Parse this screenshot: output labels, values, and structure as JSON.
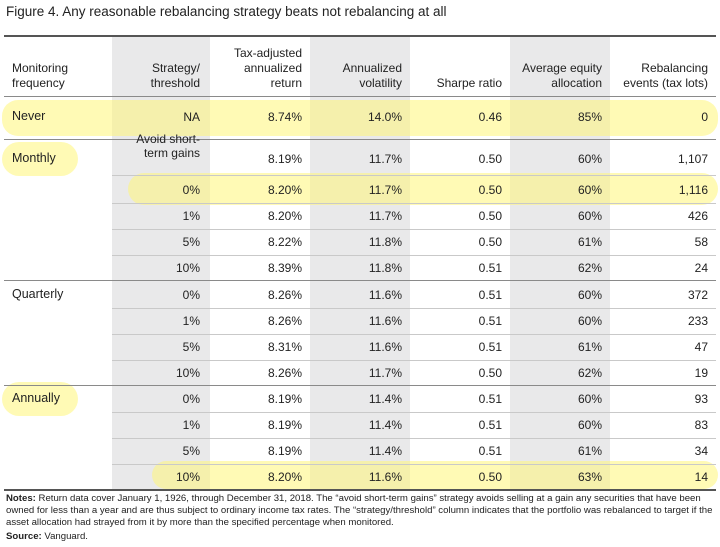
{
  "title": "Figure 4. Any reasonable rebalancing strategy beats not rebalancing at all",
  "headers": {
    "monitoring": "Monitoring\nfrequency",
    "strategy": "Strategy/\nthreshold",
    "return": "Tax-adjusted\nannualized\nreturn",
    "volatility": "Annualized\nvolatility",
    "sharpe": "Sharpe ratio",
    "equity": "Average equity\nallocation",
    "events": "Rebalancing\nevents (tax lots)"
  },
  "rows": [
    {
      "freq": "Never",
      "strategy": "NA",
      "return": "8.74%",
      "volatility": "14.0%",
      "sharpe": "0.46",
      "equity": "85%",
      "events": "0"
    },
    {
      "freq": "Monthly",
      "strategy": "Avoid short-\nterm gains",
      "return": "8.19%",
      "volatility": "11.7%",
      "sharpe": "0.50",
      "equity": "60%",
      "events": "1,107"
    },
    {
      "freq": "",
      "strategy": "0%",
      "return": "8.20%",
      "volatility": "11.7%",
      "sharpe": "0.50",
      "equity": "60%",
      "events": "1,116"
    },
    {
      "freq": "",
      "strategy": "1%",
      "return": "8.20%",
      "volatility": "11.7%",
      "sharpe": "0.50",
      "equity": "60%",
      "events": "426"
    },
    {
      "freq": "",
      "strategy": "5%",
      "return": "8.22%",
      "volatility": "11.8%",
      "sharpe": "0.50",
      "equity": "61%",
      "events": "58"
    },
    {
      "freq": "",
      "strategy": "10%",
      "return": "8.39%",
      "volatility": "11.8%",
      "sharpe": "0.51",
      "equity": "62%",
      "events": "24"
    },
    {
      "freq": "Quarterly",
      "strategy": "0%",
      "return": "8.26%",
      "volatility": "11.6%",
      "sharpe": "0.51",
      "equity": "60%",
      "events": "372"
    },
    {
      "freq": "",
      "strategy": "1%",
      "return": "8.26%",
      "volatility": "11.6%",
      "sharpe": "0.51",
      "equity": "60%",
      "events": "233"
    },
    {
      "freq": "",
      "strategy": "5%",
      "return": "8.31%",
      "volatility": "11.6%",
      "sharpe": "0.51",
      "equity": "61%",
      "events": "47"
    },
    {
      "freq": "",
      "strategy": "10%",
      "return": "8.26%",
      "volatility": "11.7%",
      "sharpe": "0.50",
      "equity": "62%",
      "events": "19"
    },
    {
      "freq": "Annually",
      "strategy": "0%",
      "return": "8.19%",
      "volatility": "11.4%",
      "sharpe": "0.51",
      "equity": "60%",
      "events": "93"
    },
    {
      "freq": "",
      "strategy": "1%",
      "return": "8.19%",
      "volatility": "11.4%",
      "sharpe": "0.51",
      "equity": "60%",
      "events": "83"
    },
    {
      "freq": "",
      "strategy": "5%",
      "return": "8.19%",
      "volatility": "11.4%",
      "sharpe": "0.51",
      "equity": "61%",
      "events": "34"
    },
    {
      "freq": "",
      "strategy": "10%",
      "return": "8.20%",
      "volatility": "11.6%",
      "sharpe": "0.50",
      "equity": "63%",
      "events": "14"
    }
  ],
  "notes": {
    "label": "Notes:",
    "text": "Return data cover January 1, 1926, through December 31, 2018. The “avoid short-term gains” strategy avoids selling at a gain any securities that have been owned for less than a year and are thus subject to ordinary income tax rates. The “strategy/threshold” column indicates that the portfolio was rebalanced to target if the asset allocation had strayed from it by more than the specified percentage when monitored."
  },
  "source": {
    "label": "Source:",
    "text": "Vanguard."
  },
  "colors": {
    "highlight": "#fff678",
    "shaded_column": "#e9e9ea",
    "rule": "#8a8a8a"
  }
}
